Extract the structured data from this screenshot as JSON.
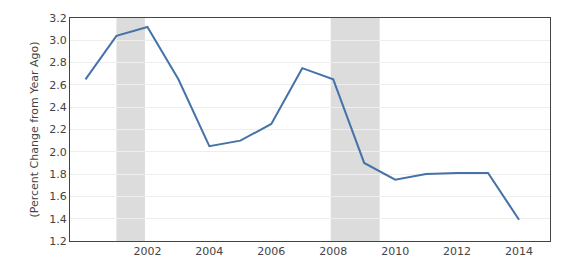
{
  "chart_data": {
    "type": "line",
    "ylabel": "(Percent Change from Year Ago)",
    "x": [
      2000,
      2001,
      2002,
      2003,
      2004,
      2005,
      2006,
      2007,
      2008,
      2009,
      2010,
      2011,
      2012,
      2013,
      2014
    ],
    "values": [
      2.65,
      3.04,
      3.12,
      2.65,
      2.05,
      2.1,
      2.25,
      2.75,
      2.65,
      1.9,
      1.75,
      1.8,
      1.81,
      1.81,
      1.39
    ],
    "color": "#4572a7",
    "xlim": [
      1999.5,
      2015.0
    ],
    "xticks": [
      2002,
      2004,
      2006,
      2008,
      2010,
      2012,
      2014
    ],
    "ylim": [
      1.2,
      3.2
    ],
    "yticks": [
      1.2,
      1.4,
      1.6,
      1.8,
      {
        "value": 2.0,
        "label": "2.0"
      },
      2.2,
      2.4,
      2.6,
      2.8,
      {
        "value": 3.0,
        "label": "3.0"
      },
      3.2
    ],
    "recession_bars": [
      {
        "start": 2001.0,
        "end": 2001.92,
        "color": "#dcdcdc"
      },
      {
        "start": 2007.92,
        "end": 2009.5,
        "color": "#dcdcdc"
      }
    ],
    "grid": "y"
  }
}
